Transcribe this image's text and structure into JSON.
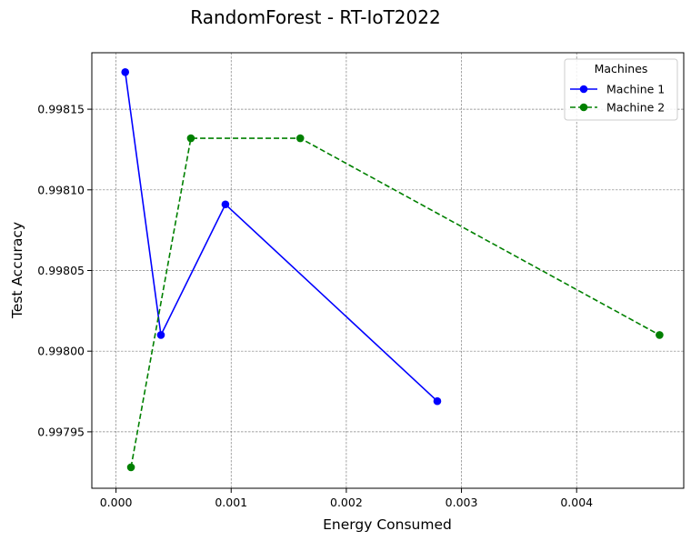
{
  "chart_data": {
    "type": "line",
    "title": "RandomForest - RT-IoT2022",
    "xlabel": "Energy Consumed",
    "ylabel": "Test Accuracy",
    "xlim": [
      -0.00021,
      0.00493
    ],
    "ylim": [
      0.997915,
      0.998185
    ],
    "xticks": [
      0.0,
      0.001,
      0.002,
      0.003,
      0.004
    ],
    "xtick_labels": [
      "0.000",
      "0.001",
      "0.002",
      "0.003",
      "0.004"
    ],
    "yticks": [
      0.99795,
      0.998,
      0.99805,
      0.9981,
      0.99815
    ],
    "ytick_labels": [
      "0.99795",
      "0.99800",
      "0.99805",
      "0.99810",
      "0.99815"
    ],
    "grid": true,
    "legend": {
      "title": "Machines",
      "placement": "top-right"
    },
    "series": [
      {
        "name": "Machine 1",
        "color": "#0000ff",
        "linestyle": "solid",
        "marker": "circle",
        "x": [
          8e-05,
          0.00039,
          0.00095,
          0.00279
        ],
        "y": [
          0.998173,
          0.99801,
          0.998091,
          0.997969
        ]
      },
      {
        "name": "Machine 2",
        "color": "#008000",
        "linestyle": "dashed",
        "marker": "circle",
        "x": [
          0.00013,
          0.00065,
          0.0016,
          0.00472
        ],
        "y": [
          0.997928,
          0.998132,
          0.998132,
          0.99801
        ]
      }
    ]
  }
}
